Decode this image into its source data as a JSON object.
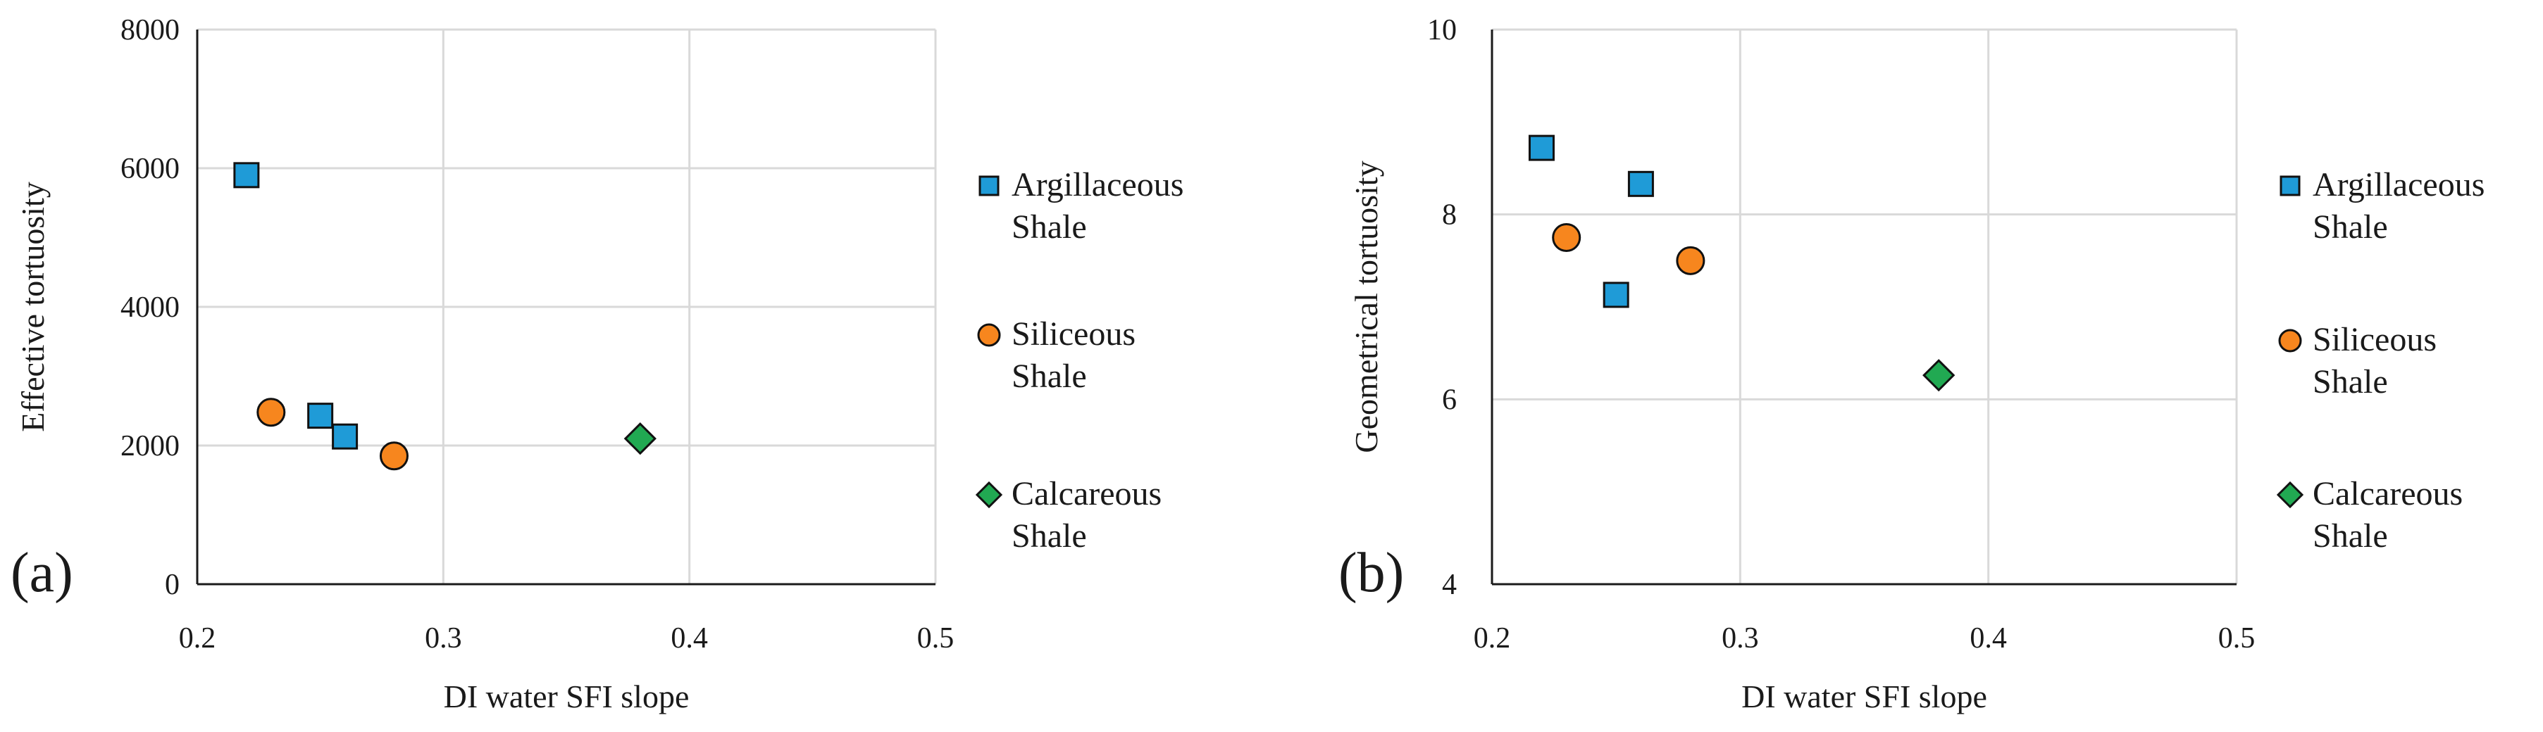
{
  "colors": {
    "argillaceous": "#1f9bd7",
    "siliceous": "#f7861e",
    "calcareous": "#21a952",
    "marker_edge": "#111111",
    "grid": "#d9d9d9",
    "axis": "#1a1a1a"
  },
  "chart_data": [
    {
      "type": "scatter",
      "panel_label": "(a)",
      "title": "",
      "xlabel": "DI water SFI slope",
      "ylabel": "Effective tortuosity",
      "xlim": [
        0.2,
        0.5
      ],
      "ylim": [
        0,
        8000
      ],
      "xticks": [
        0.2,
        0.3,
        0.4,
        0.5
      ],
      "xtick_labels": [
        "0.2",
        "0.3",
        "0.4",
        "0.5"
      ],
      "yticks": [
        0,
        2000,
        4000,
        6000,
        8000
      ],
      "ytick_labels": [
        "0",
        "2000",
        "4000",
        "6000",
        "8000"
      ],
      "grid": true,
      "legend_position": "right",
      "series": [
        {
          "name": "Argillaceous Shale",
          "legend_lines": [
            "Argillaceous",
            "Shale"
          ],
          "marker": "square",
          "color_key": "argillaceous",
          "x": [
            0.22,
            0.25,
            0.26
          ],
          "y": [
            5900,
            2430,
            2130
          ]
        },
        {
          "name": "Siliceous Shale",
          "legend_lines": [
            "Siliceous",
            "Shale"
          ],
          "marker": "circle",
          "color_key": "siliceous",
          "x": [
            0.23,
            0.28
          ],
          "y": [
            2480,
            1850
          ]
        },
        {
          "name": "Calcareous Shale",
          "legend_lines": [
            "Calcareous",
            "Shale"
          ],
          "marker": "diamond",
          "color_key": "calcareous",
          "x": [
            0.38
          ],
          "y": [
            2100
          ]
        }
      ]
    },
    {
      "type": "scatter",
      "panel_label": "(b)",
      "title": "",
      "xlabel": "DI water SFI slope",
      "ylabel": "Geometrical tortuosity",
      "xlim": [
        0.2,
        0.5
      ],
      "ylim": [
        4,
        10
      ],
      "xticks": [
        0.2,
        0.3,
        0.4,
        0.5
      ],
      "xtick_labels": [
        "0.2",
        "0.3",
        "0.4",
        "0.5"
      ],
      "yticks": [
        4,
        6,
        8,
        10
      ],
      "ytick_labels": [
        "4",
        "6",
        "8",
        "10"
      ],
      "grid": true,
      "legend_position": "right",
      "series": [
        {
          "name": "Argillaceous Shale",
          "legend_lines": [
            "Argillaceous",
            "Shale"
          ],
          "marker": "square",
          "color_key": "argillaceous",
          "x": [
            0.22,
            0.26,
            0.25
          ],
          "y": [
            8.72,
            8.33,
            7.13
          ]
        },
        {
          "name": "Siliceous Shale",
          "legend_lines": [
            "Siliceous",
            "Shale"
          ],
          "marker": "circle",
          "color_key": "siliceous",
          "x": [
            0.23,
            0.28
          ],
          "y": [
            7.75,
            7.5
          ]
        },
        {
          "name": "Calcareous Shale",
          "legend_lines": [
            "Calcareous",
            "Shale"
          ],
          "marker": "diamond",
          "color_key": "calcareous",
          "x": [
            0.38
          ],
          "y": [
            6.26
          ]
        }
      ]
    }
  ]
}
